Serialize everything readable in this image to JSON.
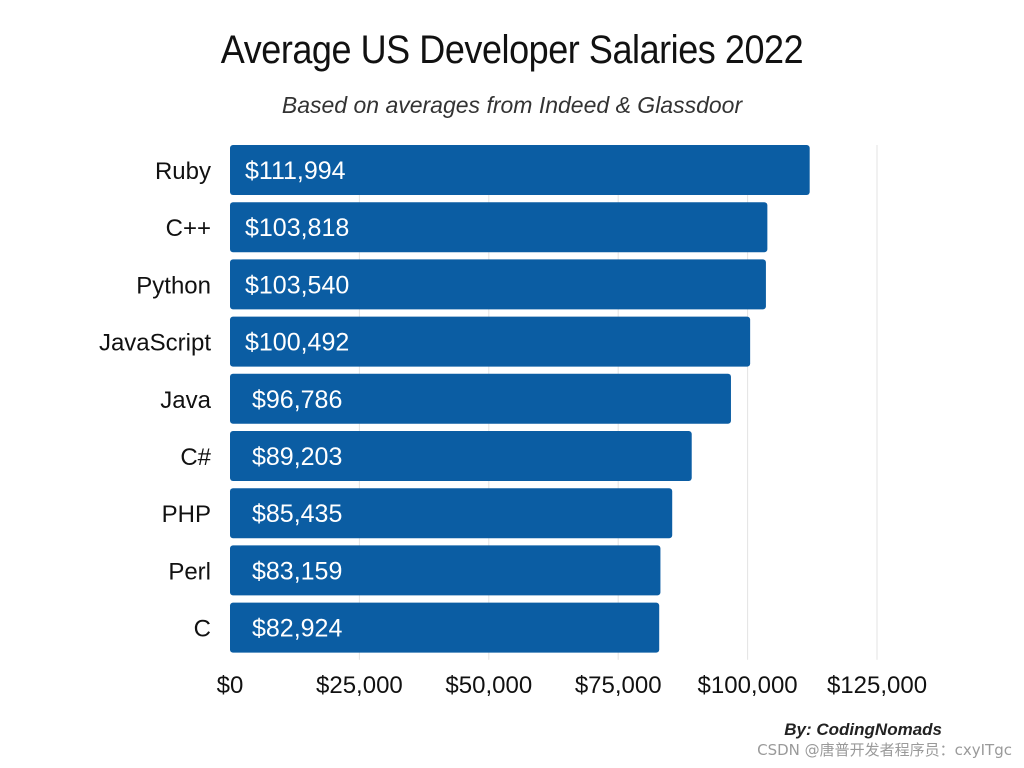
{
  "chart_data": {
    "type": "bar",
    "orientation": "horizontal",
    "title": "Average US Developer Salaries 2022",
    "subtitle": "Based on averages from Indeed & Glassdoor",
    "categories": [
      "Ruby",
      "C++",
      "Python",
      "JavaScript",
      "Java",
      "C#",
      "PHP",
      "Perl",
      "C"
    ],
    "values": [
      111994,
      103818,
      103540,
      100492,
      96786,
      89203,
      85435,
      83159,
      82924
    ],
    "value_labels": [
      "$111,994",
      "$103,818",
      "$103,540",
      "$100,492",
      "$96,786",
      "$89,203",
      "$85,435",
      "$83,159",
      "$82,924"
    ],
    "xlim": [
      0,
      125000
    ],
    "xticks": [
      0,
      25000,
      50000,
      75000,
      100000,
      125000
    ],
    "xtick_labels": [
      "$0",
      "$25,000",
      "$50,000",
      "$75,000",
      "$100,000",
      "$125,000"
    ],
    "grid": true,
    "bar_color": "#0B5DA3",
    "label_color": "#ffffff"
  },
  "credit": "By: CodingNomads",
  "watermark": "CSDN @唐普开发者程序员：cxyITgc"
}
